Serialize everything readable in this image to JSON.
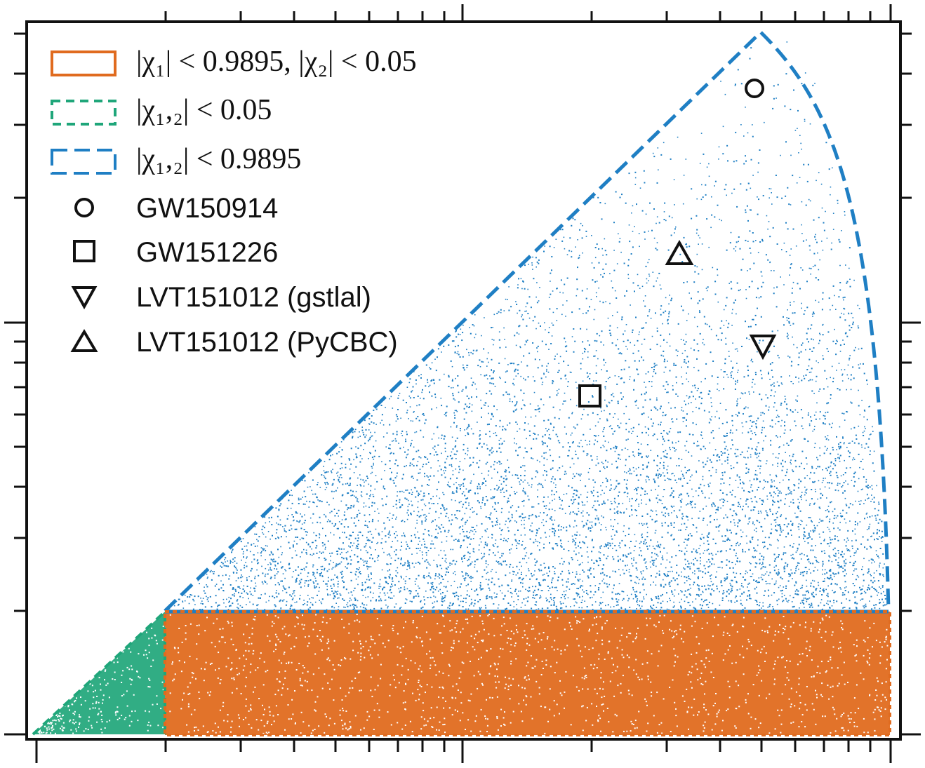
{
  "chart_data": {
    "type": "scatter",
    "title": "",
    "xlabel": "",
    "ylabel": "",
    "x_scale": "log",
    "grid": false,
    "legend_placement": "top-left",
    "tick_labels_visible": false,
    "regions": [
      {
        "name": "|χ1| < 0.9895, |χ2| < 0.05",
        "color": "#e06b1f",
        "style": "solid",
        "fill": "dense points"
      },
      {
        "name": "|χ1,2| < 0.05",
        "color": "#1fa67a",
        "style": "dotted",
        "fill": "dense points"
      },
      {
        "name": "|χ1,2| < 0.9895",
        "color": "#1f7fc4",
        "style": "dashed",
        "fill": "sparse points"
      }
    ],
    "markers": [
      {
        "name": "GW150914",
        "symbol": "circle"
      },
      {
        "name": "GW151226",
        "symbol": "square"
      },
      {
        "name": "LVT151012 (gstlal)",
        "symbol": "triangle-down"
      },
      {
        "name": "LVT151012 (PyCBC)",
        "symbol": "triangle-up"
      }
    ]
  },
  "legend": {
    "region_1": "|χ₁| < 0.9895, |χ₂| < 0.05",
    "region_2": "|χ₁,₂| < 0.05",
    "region_3": "|χ₁,₂| < 0.9895",
    "marker_1": "GW150914",
    "marker_2": "GW151226",
    "marker_3": "LVT151012 (gstlal)",
    "marker_4": "LVT151012 (PyCBC)"
  }
}
